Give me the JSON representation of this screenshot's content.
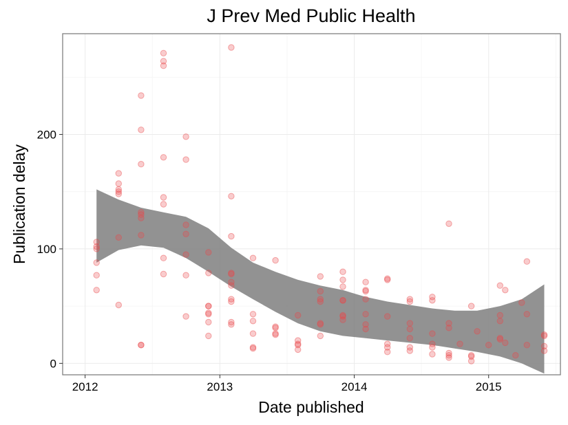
{
  "chart_data": {
    "type": "scatter",
    "title": "J Prev Med Public Health",
    "xlabel": "Date published",
    "ylabel": "Publication delay",
    "xlim": [
      "2011-11-01",
      "2015-07-15"
    ],
    "ylim": [
      -10,
      288
    ],
    "x_ticks": [
      "2012",
      "2013",
      "2014",
      "2015"
    ],
    "x_tick_dates": [
      "2012-01-01",
      "2013-01-01",
      "2014-01-01",
      "2015-01-01"
    ],
    "y_ticks": [
      0,
      100,
      200
    ],
    "grid": true,
    "point_color": "#e8474a",
    "band_color": "#7f7f7f",
    "series": [
      {
        "type": "points",
        "points": [
          {
            "x": "2012-02-01",
            "y": 106
          },
          {
            "x": "2012-02-01",
            "y": 102
          },
          {
            "x": "2012-02-01",
            "y": 100
          },
          {
            "x": "2012-02-01",
            "y": 88
          },
          {
            "x": "2012-02-01",
            "y": 77
          },
          {
            "x": "2012-02-01",
            "y": 64
          },
          {
            "x": "2012-04-01",
            "y": 166
          },
          {
            "x": "2012-04-01",
            "y": 157
          },
          {
            "x": "2012-04-01",
            "y": 152
          },
          {
            "x": "2012-04-01",
            "y": 150
          },
          {
            "x": "2012-04-01",
            "y": 148
          },
          {
            "x": "2012-04-01",
            "y": 110
          },
          {
            "x": "2012-04-01",
            "y": 51
          },
          {
            "x": "2012-06-01",
            "y": 234
          },
          {
            "x": "2012-06-01",
            "y": 204
          },
          {
            "x": "2012-06-01",
            "y": 174
          },
          {
            "x": "2012-06-01",
            "y": 132
          },
          {
            "x": "2012-06-01",
            "y": 130
          },
          {
            "x": "2012-06-01",
            "y": 127
          },
          {
            "x": "2012-06-01",
            "y": 112
          },
          {
            "x": "2012-06-01",
            "y": 16
          },
          {
            "x": "2012-06-01",
            "y": 16
          },
          {
            "x": "2012-08-01",
            "y": 271
          },
          {
            "x": "2012-08-01",
            "y": 264
          },
          {
            "x": "2012-08-01",
            "y": 260
          },
          {
            "x": "2012-08-01",
            "y": 180
          },
          {
            "x": "2012-08-01",
            "y": 145
          },
          {
            "x": "2012-08-01",
            "y": 139
          },
          {
            "x": "2012-08-01",
            "y": 92
          },
          {
            "x": "2012-08-01",
            "y": 78
          },
          {
            "x": "2012-10-01",
            "y": 198
          },
          {
            "x": "2012-10-01",
            "y": 178
          },
          {
            "x": "2012-10-01",
            "y": 121
          },
          {
            "x": "2012-10-01",
            "y": 113
          },
          {
            "x": "2012-10-01",
            "y": 95
          },
          {
            "x": "2012-10-01",
            "y": 77
          },
          {
            "x": "2012-10-01",
            "y": 41
          },
          {
            "x": "2012-12-01",
            "y": 97
          },
          {
            "x": "2012-12-01",
            "y": 79
          },
          {
            "x": "2012-12-01",
            "y": 50
          },
          {
            "x": "2012-12-01",
            "y": 50
          },
          {
            "x": "2012-12-01",
            "y": 44
          },
          {
            "x": "2012-12-01",
            "y": 43
          },
          {
            "x": "2012-12-01",
            "y": 36
          },
          {
            "x": "2012-12-01",
            "y": 24
          },
          {
            "x": "2013-02-01",
            "y": 276
          },
          {
            "x": "2013-02-01",
            "y": 146
          },
          {
            "x": "2013-02-01",
            "y": 111
          },
          {
            "x": "2013-02-01",
            "y": 79
          },
          {
            "x": "2013-02-01",
            "y": 78
          },
          {
            "x": "2013-02-01",
            "y": 71
          },
          {
            "x": "2013-02-01",
            "y": 68
          },
          {
            "x": "2013-02-01",
            "y": 56
          },
          {
            "x": "2013-02-01",
            "y": 54
          },
          {
            "x": "2013-02-01",
            "y": 36
          },
          {
            "x": "2013-02-01",
            "y": 34
          },
          {
            "x": "2013-04-01",
            "y": 92
          },
          {
            "x": "2013-04-01",
            "y": 43
          },
          {
            "x": "2013-04-01",
            "y": 37
          },
          {
            "x": "2013-04-01",
            "y": 26
          },
          {
            "x": "2013-04-01",
            "y": 14
          },
          {
            "x": "2013-04-01",
            "y": 13
          },
          {
            "x": "2013-06-01",
            "y": 90
          },
          {
            "x": "2013-06-01",
            "y": 32
          },
          {
            "x": "2013-06-01",
            "y": 31
          },
          {
            "x": "2013-06-01",
            "y": 26
          },
          {
            "x": "2013-06-01",
            "y": 25
          },
          {
            "x": "2013-08-01",
            "y": 42
          },
          {
            "x": "2013-08-01",
            "y": 20
          },
          {
            "x": "2013-08-01",
            "y": 17
          },
          {
            "x": "2013-08-01",
            "y": 16
          },
          {
            "x": "2013-08-01",
            "y": 12
          },
          {
            "x": "2013-10-01",
            "y": 76
          },
          {
            "x": "2013-10-01",
            "y": 63
          },
          {
            "x": "2013-10-01",
            "y": 56
          },
          {
            "x": "2013-10-01",
            "y": 54
          },
          {
            "x": "2013-10-01",
            "y": 35
          },
          {
            "x": "2013-10-01",
            "y": 34
          },
          {
            "x": "2013-10-01",
            "y": 24
          },
          {
            "x": "2013-12-01",
            "y": 80
          },
          {
            "x": "2013-12-01",
            "y": 73
          },
          {
            "x": "2013-12-01",
            "y": 67
          },
          {
            "x": "2013-12-01",
            "y": 55
          },
          {
            "x": "2013-12-01",
            "y": 55
          },
          {
            "x": "2013-12-01",
            "y": 42
          },
          {
            "x": "2013-12-01",
            "y": 41
          },
          {
            "x": "2013-12-01",
            "y": 38
          },
          {
            "x": "2014-02-01",
            "y": 71
          },
          {
            "x": "2014-02-01",
            "y": 64
          },
          {
            "x": "2014-02-01",
            "y": 63
          },
          {
            "x": "2014-02-01",
            "y": 56
          },
          {
            "x": "2014-02-01",
            "y": 43
          },
          {
            "x": "2014-02-01",
            "y": 34
          },
          {
            "x": "2014-02-01",
            "y": 30
          },
          {
            "x": "2014-04-01",
            "y": 74
          },
          {
            "x": "2014-04-01",
            "y": 73
          },
          {
            "x": "2014-04-01",
            "y": 41
          },
          {
            "x": "2014-04-01",
            "y": 17
          },
          {
            "x": "2014-04-01",
            "y": 14
          },
          {
            "x": "2014-04-01",
            "y": 10
          },
          {
            "x": "2014-06-01",
            "y": 56
          },
          {
            "x": "2014-06-01",
            "y": 54
          },
          {
            "x": "2014-06-01",
            "y": 35
          },
          {
            "x": "2014-06-01",
            "y": 30
          },
          {
            "x": "2014-06-01",
            "y": 22
          },
          {
            "x": "2014-06-01",
            "y": 14
          },
          {
            "x": "2014-06-01",
            "y": 11
          },
          {
            "x": "2014-08-01",
            "y": 58
          },
          {
            "x": "2014-08-01",
            "y": 55
          },
          {
            "x": "2014-08-01",
            "y": 26
          },
          {
            "x": "2014-08-01",
            "y": 17
          },
          {
            "x": "2014-08-01",
            "y": 14
          },
          {
            "x": "2014-08-01",
            "y": 8
          },
          {
            "x": "2014-09-15",
            "y": 122
          },
          {
            "x": "2014-09-15",
            "y": 35
          },
          {
            "x": "2014-09-15",
            "y": 31
          },
          {
            "x": "2014-09-15",
            "y": 9
          },
          {
            "x": "2014-09-15",
            "y": 7
          },
          {
            "x": "2014-09-15",
            "y": 5
          },
          {
            "x": "2014-10-15",
            "y": 17
          },
          {
            "x": "2014-11-15",
            "y": 50
          },
          {
            "x": "2014-11-15",
            "y": 7
          },
          {
            "x": "2014-11-15",
            "y": 6
          },
          {
            "x": "2014-11-15",
            "y": 2
          },
          {
            "x": "2014-12-01",
            "y": 28
          },
          {
            "x": "2015-01-01",
            "y": 16
          },
          {
            "x": "2015-02-01",
            "y": 68
          },
          {
            "x": "2015-02-01",
            "y": 42
          },
          {
            "x": "2015-02-01",
            "y": 37
          },
          {
            "x": "2015-02-01",
            "y": 22
          },
          {
            "x": "2015-02-01",
            "y": 21
          },
          {
            "x": "2015-02-15",
            "y": 64
          },
          {
            "x": "2015-02-15",
            "y": 18
          },
          {
            "x": "2015-03-15",
            "y": 7
          },
          {
            "x": "2015-04-01",
            "y": 53
          },
          {
            "x": "2015-04-15",
            "y": 89
          },
          {
            "x": "2015-04-15",
            "y": 43
          },
          {
            "x": "2015-04-15",
            "y": 16
          },
          {
            "x": "2015-06-01",
            "y": 25
          },
          {
            "x": "2015-06-01",
            "y": 24
          },
          {
            "x": "2015-06-01",
            "y": 15
          },
          {
            "x": "2015-06-01",
            "y": 11
          }
        ]
      },
      {
        "type": "smooth_band",
        "x": [
          "2012-02-01",
          "2012-04-01",
          "2012-06-01",
          "2012-08-01",
          "2012-10-01",
          "2012-12-01",
          "2013-02-01",
          "2013-04-01",
          "2013-06-01",
          "2013-08-01",
          "2013-10-01",
          "2013-12-01",
          "2014-02-01",
          "2014-04-01",
          "2014-06-01",
          "2014-08-01",
          "2014-10-01",
          "2014-12-01",
          "2015-02-01",
          "2015-04-01",
          "2015-06-01"
        ],
        "upper": [
          152,
          143,
          136,
          132,
          128,
          118,
          101,
          88,
          80,
          73,
          68,
          64,
          58,
          54,
          51,
          48,
          46,
          46,
          50,
          56,
          69
        ],
        "lower": [
          88,
          99,
          103,
          101,
          92,
          80,
          67,
          56,
          45,
          35,
          28,
          24,
          22,
          20,
          18,
          16,
          13,
          10,
          6,
          0,
          -9
        ]
      }
    ]
  }
}
